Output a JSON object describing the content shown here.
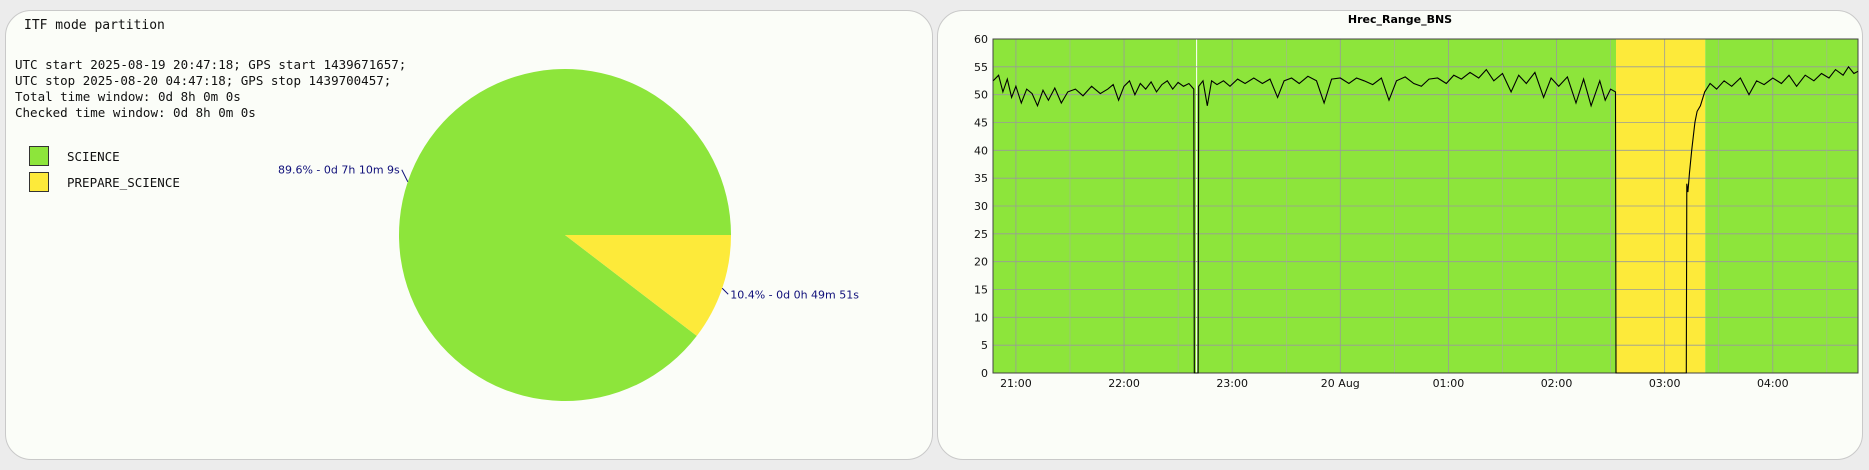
{
  "pie_panel": {
    "title": "ITF mode partition",
    "info_lines": [
      "UTC start 2025-08-19 20:47:18; GPS start 1439671657;",
      "UTC stop 2025-08-20 04:47:18; GPS stop 1439700457;",
      "Total time window: 0d 8h 0m 0s",
      "Checked time window: 0d 8h 0m 0s"
    ],
    "legend": [
      {
        "label": "SCIENCE",
        "color": "#8de53b"
      },
      {
        "label": "PREPARE_SCIENCE",
        "color": "#fdea3a"
      }
    ]
  },
  "range_panel": {
    "title": "Hrec_Range_BNS"
  },
  "colors": {
    "science": "#8de53b",
    "prepare_science": "#fdea3a",
    "label_text": "#10107a",
    "trace": "#000000"
  },
  "chart_data": [
    {
      "type": "pie",
      "title": "ITF mode partition",
      "slices": [
        {
          "name": "SCIENCE",
          "percent": 89.6,
          "label": "89.6% - 0d 7h 10m 9s",
          "color": "#8de53b"
        },
        {
          "name": "PREPARE_SCIENCE",
          "percent": 10.4,
          "label": "10.4% - 0d 0h 49m 51s",
          "color": "#fdea3a"
        }
      ]
    },
    {
      "type": "line",
      "title": "Hrec_Range_BNS",
      "xlabel": "",
      "ylabel": "",
      "x_range_hours": [
        20.788,
        28.788
      ],
      "ylim": [
        0,
        60
      ],
      "y_ticks": [
        0,
        5,
        10,
        15,
        20,
        25,
        30,
        35,
        40,
        45,
        50,
        55,
        60
      ],
      "x_ticks": [
        {
          "hour": 21,
          "label": "21:00"
        },
        {
          "hour": 22,
          "label": "22:00"
        },
        {
          "hour": 23,
          "label": "23:00"
        },
        {
          "hour": 24,
          "label": "20 Aug"
        },
        {
          "hour": 25,
          "label": "01:00"
        },
        {
          "hour": 26,
          "label": "02:00"
        },
        {
          "hour": 27,
          "label": "03:00"
        },
        {
          "hour": 28,
          "label": "04:00"
        }
      ],
      "grid": true,
      "mode_bands": [
        {
          "mode": "SCIENCE",
          "start": 20.788,
          "end": 22.666,
          "color": "#8de53b"
        },
        {
          "mode": "SCIENCE",
          "start": 22.676,
          "end": 26.55,
          "color": "#8de53b"
        },
        {
          "mode": "PREPARE_SCIENCE",
          "start": 26.55,
          "end": 27.375,
          "color": "#fdea3a"
        },
        {
          "mode": "SCIENCE",
          "start": 27.375,
          "end": 28.788,
          "color": "#8de53b"
        }
      ],
      "series": [
        {
          "points": [
            [
              20.79,
              52.5
            ],
            [
              20.84,
              53.5
            ],
            [
              20.88,
              50.5
            ],
            [
              20.92,
              52.8
            ],
            [
              20.96,
              49.5
            ],
            [
              21.0,
              51.5
            ],
            [
              21.05,
              48.5
            ],
            [
              21.1,
              51.0
            ],
            [
              21.15,
              50.2
            ],
            [
              21.2,
              48.0
            ],
            [
              21.25,
              50.8
            ],
            [
              21.3,
              49.0
            ],
            [
              21.36,
              51.2
            ],
            [
              21.42,
              48.5
            ],
            [
              21.48,
              50.5
            ],
            [
              21.55,
              51.0
            ],
            [
              21.62,
              49.8
            ],
            [
              21.7,
              51.5
            ],
            [
              21.78,
              50.2
            ],
            [
              21.85,
              51.0
            ],
            [
              21.9,
              51.8
            ],
            [
              21.95,
              49.0
            ],
            [
              22.0,
              51.5
            ],
            [
              22.05,
              52.5
            ],
            [
              22.1,
              50.0
            ],
            [
              22.15,
              52.0
            ],
            [
              22.2,
              51.0
            ],
            [
              22.25,
              52.3
            ],
            [
              22.3,
              50.5
            ],
            [
              22.35,
              51.8
            ],
            [
              22.4,
              52.5
            ],
            [
              22.45,
              51.0
            ],
            [
              22.5,
              52.2
            ],
            [
              22.55,
              51.5
            ],
            [
              22.6,
              52.0
            ],
            [
              22.645,
              51.0
            ],
            [
              22.65,
              0
            ],
            [
              22.685,
              0
            ],
            [
              22.69,
              51.5
            ],
            [
              22.73,
              52.5
            ],
            [
              22.77,
              48.0
            ],
            [
              22.81,
              52.5
            ],
            [
              22.86,
              51.8
            ],
            [
              22.92,
              52.5
            ],
            [
              22.98,
              51.5
            ],
            [
              23.05,
              52.8
            ],
            [
              23.12,
              52.0
            ],
            [
              23.2,
              53.0
            ],
            [
              23.28,
              52.0
            ],
            [
              23.35,
              52.8
            ],
            [
              23.42,
              49.5
            ],
            [
              23.48,
              52.5
            ],
            [
              23.55,
              53.0
            ],
            [
              23.62,
              52.0
            ],
            [
              23.7,
              53.3
            ],
            [
              23.78,
              52.5
            ],
            [
              23.85,
              48.5
            ],
            [
              23.92,
              52.8
            ],
            [
              24.0,
              53.0
            ],
            [
              24.08,
              52.0
            ],
            [
              24.15,
              53.0
            ],
            [
              24.22,
              52.5
            ],
            [
              24.3,
              51.8
            ],
            [
              24.38,
              53.0
            ],
            [
              24.45,
              49.0
            ],
            [
              24.52,
              52.5
            ],
            [
              24.6,
              53.2
            ],
            [
              24.68,
              52.0
            ],
            [
              24.75,
              51.5
            ],
            [
              24.82,
              52.8
            ],
            [
              24.9,
              53.0
            ],
            [
              24.98,
              52.0
            ],
            [
              25.05,
              53.5
            ],
            [
              25.12,
              52.8
            ],
            [
              25.2,
              54.0
            ],
            [
              25.28,
              53.0
            ],
            [
              25.35,
              54.5
            ],
            [
              25.42,
              52.5
            ],
            [
              25.5,
              53.8
            ],
            [
              25.58,
              50.5
            ],
            [
              25.65,
              53.5
            ],
            [
              25.72,
              52.0
            ],
            [
              25.8,
              54.0
            ],
            [
              25.88,
              49.5
            ],
            [
              25.95,
              53.0
            ],
            [
              26.02,
              51.5
            ],
            [
              26.1,
              53.2
            ],
            [
              26.18,
              48.5
            ],
            [
              26.25,
              52.8
            ],
            [
              26.32,
              48.0
            ],
            [
              26.4,
              52.5
            ],
            [
              26.45,
              49.0
            ],
            [
              26.5,
              51.0
            ],
            [
              26.545,
              50.5
            ],
            [
              26.55,
              0
            ],
            [
              27.2,
              0
            ],
            [
              27.205,
              34.0
            ],
            [
              27.215,
              32.5
            ],
            [
              27.23,
              36.0
            ],
            [
              27.25,
              40.0
            ],
            [
              27.28,
              45.0
            ],
            [
              27.3,
              47.0
            ],
            [
              27.33,
              48.0
            ],
            [
              27.37,
              50.5
            ],
            [
              27.42,
              52.0
            ],
            [
              27.48,
              51.0
            ],
            [
              27.55,
              52.5
            ],
            [
              27.62,
              51.5
            ],
            [
              27.7,
              53.0
            ],
            [
              27.78,
              50.0
            ],
            [
              27.85,
              52.5
            ],
            [
              27.92,
              51.8
            ],
            [
              28.0,
              53.0
            ],
            [
              28.08,
              52.0
            ],
            [
              28.15,
              53.5
            ],
            [
              28.22,
              51.5
            ],
            [
              28.3,
              53.5
            ],
            [
              28.38,
              52.5
            ],
            [
              28.45,
              53.8
            ],
            [
              28.52,
              53.0
            ],
            [
              28.58,
              54.5
            ],
            [
              28.65,
              53.5
            ],
            [
              28.7,
              55.0
            ],
            [
              28.75,
              53.8
            ],
            [
              28.788,
              54.2
            ]
          ]
        }
      ]
    }
  ]
}
